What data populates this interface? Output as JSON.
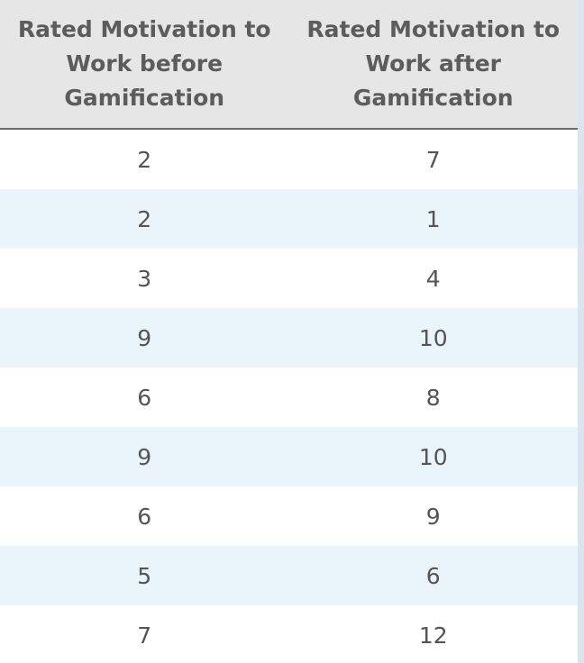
{
  "table": {
    "columns": [
      "Rated Motivation to Work before Gamification",
      "Rated Motivation to Work after Gamification"
    ],
    "rows": [
      [
        "2",
        "7"
      ],
      [
        "2",
        "1"
      ],
      [
        "3",
        "4"
      ],
      [
        "9",
        "10"
      ],
      [
        "6",
        "8"
      ],
      [
        "9",
        "10"
      ],
      [
        "6",
        "9"
      ],
      [
        "5",
        "6"
      ],
      [
        "7",
        "12"
      ]
    ]
  },
  "colors": {
    "header_bg": "#e6e6e6",
    "header_text": "#5c5c5c",
    "row_alt_bg": "#eaf4fb",
    "row_bg": "#ffffff",
    "header_rule": "#6d6d6d"
  }
}
